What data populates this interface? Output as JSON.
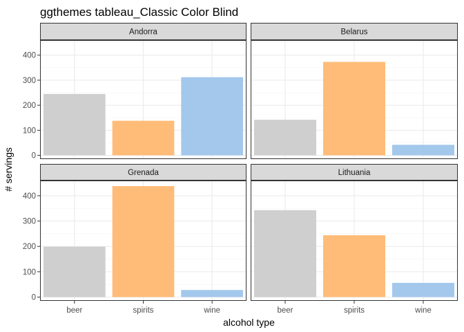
{
  "chart_data": {
    "type": "bar",
    "title": "ggthemes tableau_Classic Color Blind",
    "xlabel": "alcohol type",
    "ylabel": "# servings",
    "categories": [
      "beer",
      "spirits",
      "wine"
    ],
    "category_colors": [
      "#cfcfcf",
      "#ffbc79",
      "#a3c8ec"
    ],
    "ylim": [
      -15,
      460
    ],
    "yticks": [
      0,
      100,
      200,
      300,
      400
    ],
    "ytick_labels": [
      "0",
      "100",
      "200",
      "300",
      "400"
    ],
    "grid": true,
    "legend": "none",
    "facets": [
      {
        "name": "Andorra",
        "values": [
          245,
          138,
          312
        ]
      },
      {
        "name": "Belarus",
        "values": [
          142,
          373,
          42
        ]
      },
      {
        "name": "Grenada",
        "values": [
          199,
          438,
          28
        ]
      },
      {
        "name": "Lithuania",
        "values": [
          343,
          244,
          56
        ]
      }
    ]
  },
  "colors": {
    "strip_fill": "#d9d9d9",
    "panel_border": "#333333",
    "grid_major": "#ebebeb",
    "grid_minor": "#f5f5f5"
  }
}
